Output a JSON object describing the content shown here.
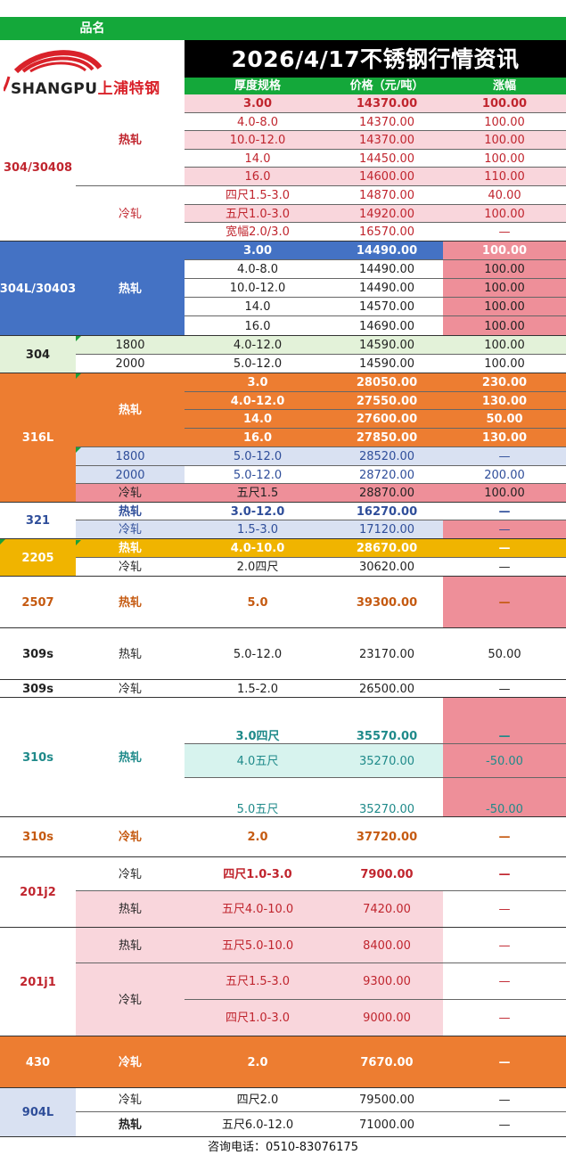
{
  "header": {
    "product_label": "品名",
    "title": "2026/4/17不锈钢行情资讯",
    "columns": [
      "厚度规格",
      "价格（元/吨）",
      "涨幅"
    ]
  },
  "logo": {
    "brand": "SHANGPU",
    "cn": "上浦特钢"
  },
  "footer": {
    "contact": "咨询电话：0510-83076175"
  },
  "colors": {
    "header_green": "#14a83a",
    "black": "#000000",
    "pink": "#f9d6dc",
    "rose": "#ee8f99",
    "blue": "#4472c4",
    "light_green": "#e3f2d9",
    "orange": "#ed7d31",
    "light_blue": "#d9e1f2",
    "gold": "#f0b400",
    "mint": "#d7f3ee",
    "teal_text": "#1f8a8a",
    "red_text": "#c0252e",
    "navy_text": "#2f4e9a",
    "orange_text": "#c55a11"
  },
  "sections": [
    {
      "grade": "304/30408",
      "groups": [
        {
          "process": "热轧",
          "rows": [
            {
              "spec": "3.00",
              "price": "14370.00",
              "change": "100.00"
            },
            {
              "spec": "4.0-8.0",
              "price": "14370.00",
              "change": "100.00"
            },
            {
              "spec": "10.0-12.0",
              "price": "14370.00",
              "change": "100.00"
            },
            {
              "spec": "14.0",
              "price": "14450.00",
              "change": "100.00"
            },
            {
              "spec": "16.0",
              "price": "14600.00",
              "change": "110.00"
            }
          ]
        },
        {
          "process": "冷轧",
          "rows": [
            {
              "spec": "四尺1.5-3.0",
              "price": "14870.00",
              "change": "40.00"
            },
            {
              "spec": "五尺1.0-3.0",
              "price": "14920.00",
              "change": "100.00"
            },
            {
              "spec": "宽幅2.0/3.0",
              "price": "16570.00",
              "change": "—"
            }
          ]
        }
      ]
    },
    {
      "grade": "304L/30403",
      "groups": [
        {
          "process": "热轧",
          "rows": [
            {
              "spec": "3.00",
              "price": "14490.00",
              "change": "100.00"
            },
            {
              "spec": "4.0-8.0",
              "price": "14490.00",
              "change": "100.00"
            },
            {
              "spec": "10.0-12.0",
              "price": "14490.00",
              "change": "100.00"
            },
            {
              "spec": "14.0",
              "price": "14570.00",
              "change": "100.00"
            },
            {
              "spec": "16.0",
              "price": "14690.00",
              "change": "100.00"
            }
          ]
        }
      ]
    },
    {
      "grade": "304",
      "groups": [
        {
          "process": "1800",
          "rows": [
            {
              "spec": "4.0-12.0",
              "price": "14590.00",
              "change": "100.00"
            }
          ]
        },
        {
          "process": "2000",
          "rows": [
            {
              "spec": "5.0-12.0",
              "price": "14590.00",
              "change": "100.00"
            }
          ]
        }
      ]
    },
    {
      "grade": "316L",
      "groups": [
        {
          "process": "热轧",
          "rows": [
            {
              "spec": "3.0",
              "price": "28050.00",
              "change": "230.00"
            },
            {
              "spec": "4.0-12.0",
              "price": "27550.00",
              "change": "130.00"
            },
            {
              "spec": "14.0",
              "price": "27600.00",
              "change": "50.00"
            },
            {
              "spec": "16.0",
              "price": "27850.00",
              "change": "130.00"
            }
          ]
        },
        {
          "process": "1800",
          "rows": [
            {
              "spec": "5.0-12.0",
              "price": "28520.00",
              "change": "—"
            }
          ]
        },
        {
          "process": "2000",
          "rows": [
            {
              "spec": "5.0-12.0",
              "price": "28720.00",
              "change": "200.00"
            }
          ]
        },
        {
          "process": "冷轧",
          "rows": [
            {
              "spec": "五尺1.5",
              "price": "28870.00",
              "change": "100.00"
            }
          ]
        }
      ]
    },
    {
      "grade": "321",
      "groups": [
        {
          "process": "热轧",
          "rows": [
            {
              "spec": "3.0-12.0",
              "price": "16270.00",
              "change": "—"
            }
          ]
        },
        {
          "process": "冷轧",
          "rows": [
            {
              "spec": "1.5-3.0",
              "price": "17120.00",
              "change": "—"
            }
          ]
        }
      ]
    },
    {
      "grade": "2205",
      "groups": [
        {
          "process": "热轧",
          "rows": [
            {
              "spec": "4.0-10.0",
              "price": "28670.00",
              "change": "—"
            }
          ]
        },
        {
          "process": "冷轧",
          "rows": [
            {
              "spec": "2.0四尺",
              "price": "30620.00",
              "change": "—"
            }
          ]
        }
      ]
    },
    {
      "grade": "2507",
      "groups": [
        {
          "process": "热轧",
          "rows": [
            {
              "spec": "5.0",
              "price": "39300.00",
              "change": "—"
            }
          ]
        }
      ]
    },
    {
      "grade": "309s",
      "groups": [
        {
          "process": "热轧",
          "rows": [
            {
              "spec": "5.0-12.0",
              "price": "23170.00",
              "change": "50.00"
            }
          ]
        }
      ]
    },
    {
      "grade": "309s",
      "groups": [
        {
          "process": "冷轧",
          "rows": [
            {
              "spec": "1.5-2.0",
              "price": "26500.00",
              "change": "—"
            }
          ]
        }
      ]
    },
    {
      "grade": "310s",
      "groups": [
        {
          "process": "热轧",
          "rows": [
            {
              "spec": "3.0四尺",
              "price": "35570.00",
              "change": "—"
            },
            {
              "spec": "4.0五尺",
              "price": "35270.00",
              "change": "-50.00"
            },
            {
              "spec": "5.0五尺",
              "price": "35270.00",
              "change": "-50.00"
            }
          ]
        }
      ]
    },
    {
      "grade": "310s",
      "groups": [
        {
          "process": "冷轧",
          "rows": [
            {
              "spec": "2.0",
              "price": "37720.00",
              "change": "—"
            }
          ]
        }
      ]
    },
    {
      "grade": "201j2",
      "groups": [
        {
          "process": "冷轧",
          "rows": [
            {
              "spec": "四尺1.0-3.0",
              "price": "7900.00",
              "change": "—"
            }
          ]
        },
        {
          "process": "热轧",
          "rows": [
            {
              "spec": "五尺4.0-10.0",
              "price": "7420.00",
              "change": "—"
            }
          ]
        }
      ]
    },
    {
      "grade": "201j1",
      "groups": [
        {
          "process": "热轧",
          "rows": [
            {
              "spec": "五尺5.0-10.0",
              "price": "8400.00",
              "change": "—"
            }
          ]
        },
        {
          "process": "冷轧",
          "rows": [
            {
              "spec": "五尺1.5-3.0",
              "price": "9300.00",
              "change": "—"
            },
            {
              "spec": "四尺1.0-3.0",
              "price": "9000.00",
              "change": "—"
            }
          ]
        }
      ]
    },
    {
      "grade": "430",
      "groups": [
        {
          "process": "冷轧",
          "rows": [
            {
              "spec": "2.0",
              "price": "7670.00",
              "change": "—"
            }
          ]
        }
      ]
    },
    {
      "grade": "904L",
      "groups": [
        {
          "process": "冷轧",
          "rows": [
            {
              "spec": "四尺2.0",
              "price": "79500.00",
              "change": "—"
            }
          ]
        },
        {
          "process": "热轧",
          "rows": [
            {
              "spec": "五尺6.0-12.0",
              "price": "71000.00",
              "change": "—"
            }
          ]
        }
      ]
    }
  ]
}
